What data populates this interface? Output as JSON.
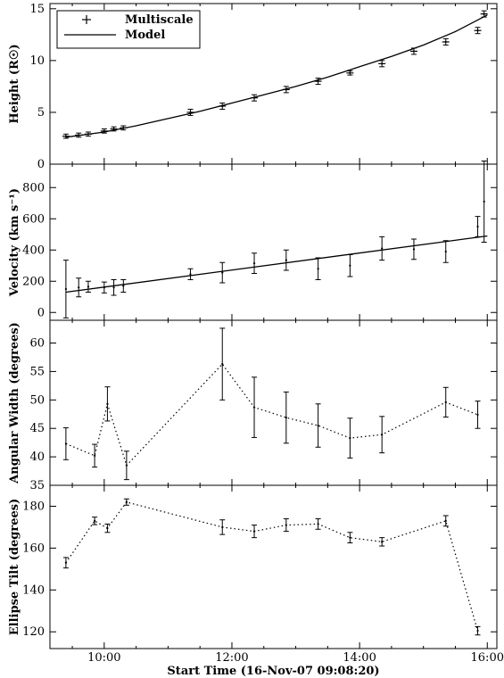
{
  "chart_data": {
    "type": "line",
    "x_axis": {
      "label": "Start Time (16-Nov-07 09:08:20)",
      "ticks": [
        {
          "hour": 10,
          "label": "10:00"
        },
        {
          "hour": 12,
          "label": "12:00"
        },
        {
          "hour": 14,
          "label": "14:00"
        },
        {
          "hour": 16,
          "label": "16:00"
        }
      ],
      "range_hours": [
        9.15,
        16.15
      ]
    },
    "panels": [
      {
        "id": "height",
        "ylabel": "Height (R☉)",
        "ylim": [
          0,
          15.5
        ],
        "yticks": [
          0,
          5,
          10,
          15
        ],
        "legend": {
          "placement": "top-left",
          "entries": [
            {
              "symbol": "plus",
              "label": "Multiscale"
            },
            {
              "symbol": "line",
              "label": "Model"
            }
          ]
        },
        "series": [
          {
            "name": "Multiscale",
            "style": "plus-with-errorbars",
            "points": [
              {
                "x": 9.4,
                "y": 2.7,
                "err": 0.2
              },
              {
                "x": 9.6,
                "y": 2.8,
                "err": 0.2
              },
              {
                "x": 9.75,
                "y": 2.9,
                "err": 0.2
              },
              {
                "x": 10.0,
                "y": 3.2,
                "err": 0.2
              },
              {
                "x": 10.15,
                "y": 3.4,
                "err": 0.2
              },
              {
                "x": 10.3,
                "y": 3.5,
                "err": 0.2
              },
              {
                "x": 11.35,
                "y": 5.0,
                "err": 0.3
              },
              {
                "x": 11.85,
                "y": 5.6,
                "err": 0.3
              },
              {
                "x": 12.35,
                "y": 6.4,
                "err": 0.3
              },
              {
                "x": 12.85,
                "y": 7.2,
                "err": 0.3
              },
              {
                "x": 13.35,
                "y": 8.0,
                "err": 0.3
              },
              {
                "x": 13.85,
                "y": 8.8,
                "err": 0.2
              },
              {
                "x": 14.35,
                "y": 9.7,
                "err": 0.3
              },
              {
                "x": 14.85,
                "y": 10.9,
                "err": 0.3
              },
              {
                "x": 15.35,
                "y": 11.8,
                "err": 0.3
              },
              {
                "x": 15.85,
                "y": 12.9,
                "err": 0.3
              },
              {
                "x": 15.95,
                "y": 14.5,
                "err": 0.3
              }
            ]
          },
          {
            "name": "Model",
            "style": "solid-line",
            "points": [
              {
                "x": 9.4,
                "y": 2.6
              },
              {
                "x": 10.0,
                "y": 3.1
              },
              {
                "x": 10.5,
                "y": 3.7
              },
              {
                "x": 11.0,
                "y": 4.4
              },
              {
                "x": 11.5,
                "y": 5.1
              },
              {
                "x": 12.0,
                "y": 5.9
              },
              {
                "x": 12.5,
                "y": 6.7
              },
              {
                "x": 13.0,
                "y": 7.5
              },
              {
                "x": 13.5,
                "y": 8.4
              },
              {
                "x": 14.0,
                "y": 9.4
              },
              {
                "x": 14.5,
                "y": 10.4
              },
              {
                "x": 15.0,
                "y": 11.5
              },
              {
                "x": 15.5,
                "y": 12.8
              },
              {
                "x": 16.0,
                "y": 14.4
              }
            ]
          }
        ]
      },
      {
        "id": "velocity",
        "ylabel": "Velocity (km s⁻¹)",
        "ylim": [
          -50,
          950
        ],
        "yticks": [
          0,
          200,
          400,
          600,
          800
        ],
        "series": [
          {
            "name": "",
            "style": "errorbars",
            "points": [
              {
                "x": 9.4,
                "y": 150,
                "err": 185
              },
              {
                "x": 9.6,
                "y": 160,
                "err": 60
              },
              {
                "x": 9.75,
                "y": 165,
                "err": 35
              },
              {
                "x": 10.0,
                "y": 160,
                "err": 35
              },
              {
                "x": 10.15,
                "y": 160,
                "err": 50
              },
              {
                "x": 10.3,
                "y": 170,
                "err": 40
              },
              {
                "x": 11.35,
                "y": 245,
                "err": 35
              },
              {
                "x": 11.85,
                "y": 255,
                "err": 65
              },
              {
                "x": 12.35,
                "y": 315,
                "err": 65
              },
              {
                "x": 12.85,
                "y": 335,
                "err": 65
              },
              {
                "x": 13.35,
                "y": 280,
                "err": 70
              },
              {
                "x": 13.85,
                "y": 300,
                "err": 70
              },
              {
                "x": 14.35,
                "y": 410,
                "err": 75
              },
              {
                "x": 14.85,
                "y": 405,
                "err": 65
              },
              {
                "x": 15.35,
                "y": 390,
                "err": 70
              },
              {
                "x": 15.85,
                "y": 550,
                "err": 65
              },
              {
                "x": 15.95,
                "y": 710,
                "err": 260
              }
            ]
          },
          {
            "name": "",
            "style": "solid-line",
            "points": [
              {
                "x": 9.4,
                "y": 130
              },
              {
                "x": 16.0,
                "y": 490
              }
            ]
          }
        ]
      },
      {
        "id": "angular-width",
        "ylabel": "Angular Width (degrees)",
        "ylim": [
          35,
          64
        ],
        "yticks": [
          35,
          40,
          45,
          50,
          55,
          60
        ],
        "series": [
          {
            "name": "",
            "style": "dotted-with-errorbars",
            "points": [
              {
                "x": 9.4,
                "y": 42.3,
                "err": 2.8
              },
              {
                "x": 9.85,
                "y": 40.2,
                "err": 2.0
              },
              {
                "x": 10.05,
                "y": 49.3,
                "err": 3.0
              },
              {
                "x": 10.35,
                "y": 38.5,
                "err": 2.5
              },
              {
                "x": 11.85,
                "y": 56.3,
                "err": 6.3
              },
              {
                "x": 12.35,
                "y": 48.7,
                "err": 5.3
              },
              {
                "x": 12.85,
                "y": 46.9,
                "err": 4.5
              },
              {
                "x": 13.35,
                "y": 45.5,
                "err": 3.8
              },
              {
                "x": 13.85,
                "y": 43.3,
                "err": 3.5
              },
              {
                "x": 14.35,
                "y": 43.9,
                "err": 3.2
              },
              {
                "x": 15.35,
                "y": 49.6,
                "err": 2.6
              },
              {
                "x": 15.85,
                "y": 47.4,
                "err": 2.4
              }
            ]
          }
        ]
      },
      {
        "id": "ellipse-tilt",
        "ylabel": "Ellipse Tilt (degrees)",
        "ylim": [
          112,
          190
        ],
        "yticks": [
          120,
          140,
          160,
          180
        ],
        "series": [
          {
            "name": "",
            "style": "dotted-with-errorbars",
            "points": [
              {
                "x": 9.4,
                "y": 153,
                "err": 2.5
              },
              {
                "x": 9.85,
                "y": 173,
                "err": 1.8
              },
              {
                "x": 10.05,
                "y": 169.5,
                "err": 2.0
              },
              {
                "x": 10.35,
                "y": 182,
                "err": 1.5
              },
              {
                "x": 11.85,
                "y": 170,
                "err": 3.5
              },
              {
                "x": 12.35,
                "y": 168,
                "err": 3.0
              },
              {
                "x": 12.85,
                "y": 171,
                "err": 3.0
              },
              {
                "x": 13.35,
                "y": 171.5,
                "err": 2.5
              },
              {
                "x": 13.85,
                "y": 165,
                "err": 2.5
              },
              {
                "x": 14.35,
                "y": 163,
                "err": 2.0
              },
              {
                "x": 15.35,
                "y": 173,
                "err": 2.5
              },
              {
                "x": 15.85,
                "y": 120.5,
                "err": 2.0
              }
            ]
          }
        ]
      }
    ]
  }
}
